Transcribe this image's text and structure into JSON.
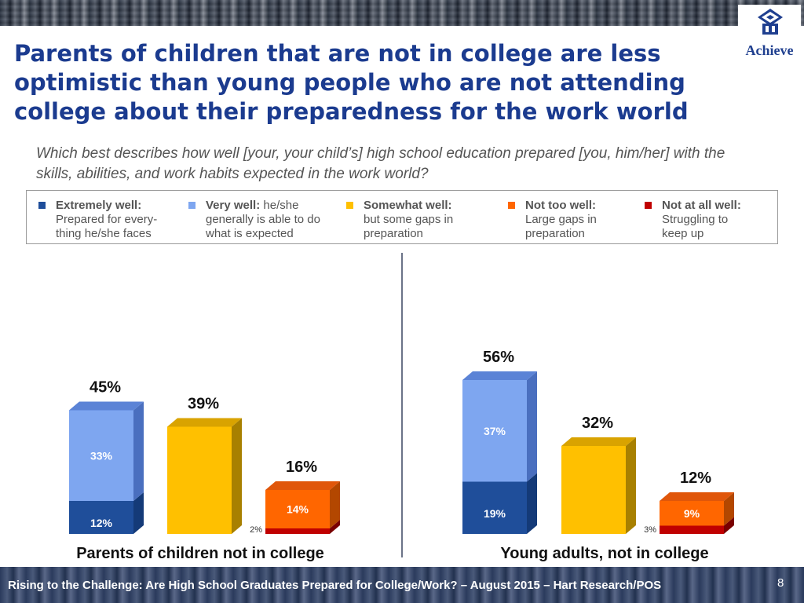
{
  "header": {
    "title": "Parents of children that are not in college are less optimistic than young people who are not attending college about their preparedness for the work world",
    "question": "Which best describes how well [your, your child’s] high school education prepared [you, him/her]  with the skills, abilities, and work habits expected in the work world?",
    "logo_text": "Achieve"
  },
  "legend": [
    {
      "term": "Extremely well:",
      "desc_first": "",
      "desc_rest": "Prepared for every-\nthing he/she faces",
      "color": "#1f4e9a"
    },
    {
      "term": "Very well:",
      "desc_first": "he/she",
      "desc_rest": "generally is able to do\nwhat is expected",
      "color": "#7ea6f0"
    },
    {
      "term": "Somewhat well:",
      "desc_first": "",
      "desc_rest": "but some gaps in\npreparation",
      "color": "#ffc000"
    },
    {
      "term": "Not too well:",
      "desc_first": "",
      "desc_rest": "Large gaps in\npreparation",
      "color": "#ff6600"
    },
    {
      "term": "Not at all well:",
      "desc_first": "",
      "desc_rest": "Struggling to\nkeep up",
      "color": "#c00000"
    }
  ],
  "chart_data": {
    "type": "bar",
    "stacked": true,
    "groups": [
      "Parents of children not in college",
      "Young adults, not in college"
    ],
    "bars": [
      {
        "group": 0,
        "total_label": "45%",
        "segments": [
          {
            "category": "Extremely well",
            "value": 12,
            "label": "12%"
          },
          {
            "category": "Very well",
            "value": 33,
            "label": "33%"
          }
        ]
      },
      {
        "group": 0,
        "total_label": "39%",
        "segments": [
          {
            "category": "Somewhat well",
            "value": 39,
            "label": ""
          }
        ]
      },
      {
        "group": 0,
        "total_label": "16%",
        "segments": [
          {
            "category": "Not at all well",
            "value": 2,
            "label": "2%"
          },
          {
            "category": "Not too well",
            "value": 14,
            "label": "14%"
          }
        ]
      },
      {
        "group": 1,
        "total_label": "56%",
        "segments": [
          {
            "category": "Extremely well",
            "value": 19,
            "label": "19%"
          },
          {
            "category": "Very well",
            "value": 37,
            "label": "37%"
          }
        ]
      },
      {
        "group": 1,
        "total_label": "32%",
        "segments": [
          {
            "category": "Somewhat well",
            "value": 32,
            "label": ""
          }
        ]
      },
      {
        "group": 1,
        "total_label": "12%",
        "segments": [
          {
            "category": "Not at all well",
            "value": 3,
            "label": "3%"
          },
          {
            "category": "Not too well",
            "value": 9,
            "label": "9%"
          }
        ]
      }
    ],
    "colors": {
      "Extremely well": "#1f4e9a",
      "Very well": "#7ea6f0",
      "Somewhat well": "#ffc000",
      "Not too well": "#ff6600",
      "Not at all well": "#c00000"
    }
  },
  "footer": {
    "text": "Rising to the Challenge:  Are High School Graduates Prepared for College/Work? – August 2015 – Hart Research/POS",
    "page": "8"
  }
}
